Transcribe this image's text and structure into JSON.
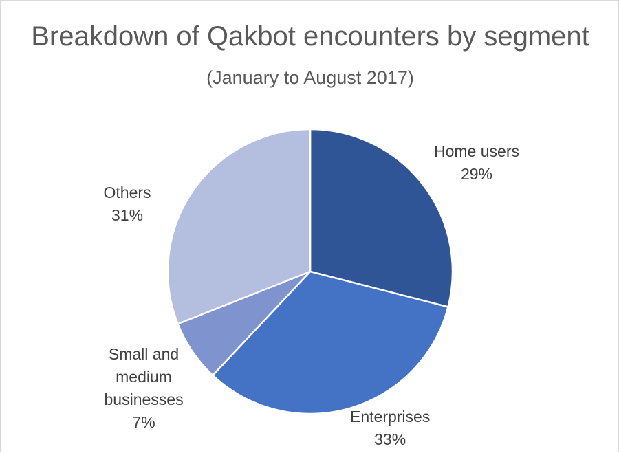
{
  "chart_data": {
    "type": "pie",
    "title": "Breakdown of Qakbot encounters by segment",
    "subtitle": "(January to August 2017)",
    "categories": [
      "Home users",
      "Enterprises",
      "Small and medium businesses",
      "Others"
    ],
    "category_lines": [
      [
        "Home users"
      ],
      [
        "Enterprises"
      ],
      [
        "Small and",
        "medium",
        "businesses"
      ],
      [
        "Others"
      ]
    ],
    "values": [
      29,
      33,
      7,
      31
    ],
    "value_labels": [
      "29%",
      "33%",
      "7%",
      "31%"
    ],
    "colors": [
      "#2f5597",
      "#4472c4",
      "#7f93cf",
      "#b4bfdf"
    ],
    "legend": "none"
  }
}
